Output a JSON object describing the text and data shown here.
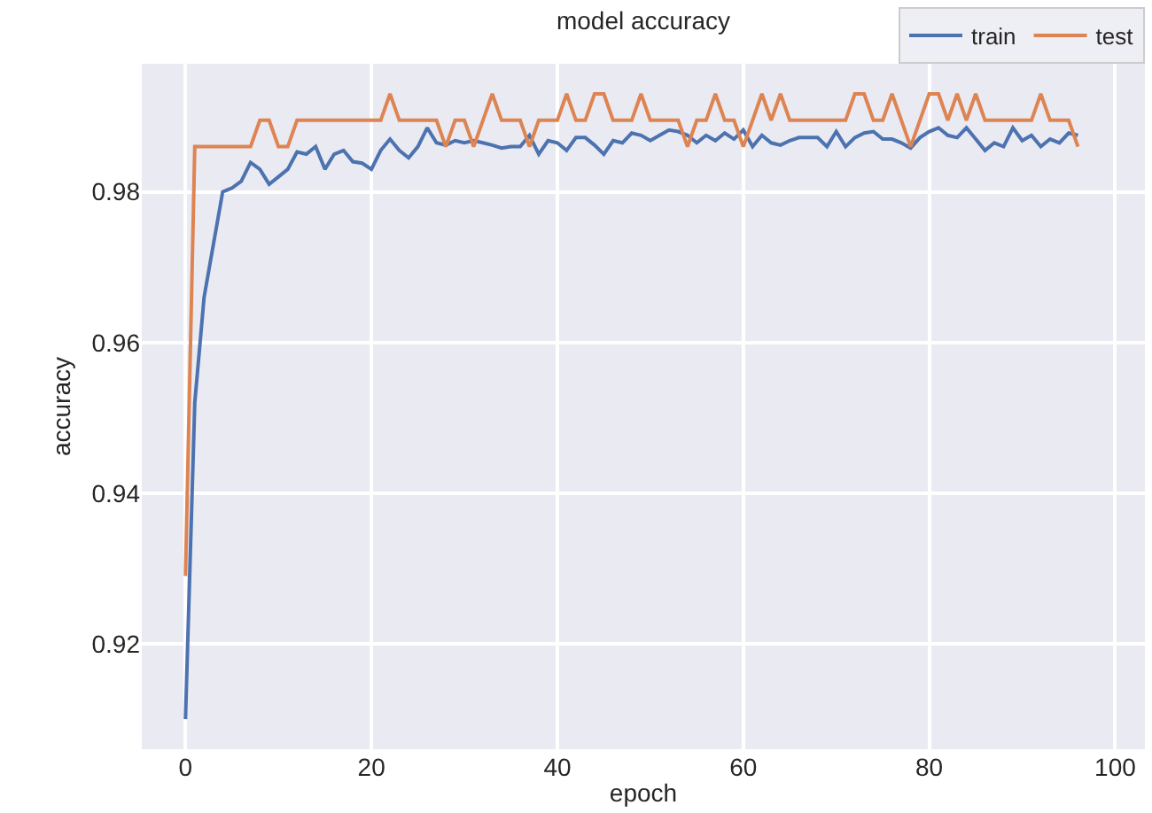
{
  "chart_data": {
    "type": "line",
    "title": "model accuracy",
    "xlabel": "epoch",
    "ylabel": "accuracy",
    "x": [
      0,
      1,
      2,
      3,
      4,
      5,
      6,
      7,
      8,
      9,
      10,
      11,
      12,
      13,
      14,
      15,
      16,
      17,
      18,
      19,
      20,
      21,
      22,
      23,
      24,
      25,
      26,
      27,
      28,
      29,
      30,
      31,
      32,
      33,
      34,
      35,
      36,
      37,
      38,
      39,
      40,
      41,
      42,
      43,
      44,
      45,
      46,
      47,
      48,
      49,
      50,
      51,
      52,
      53,
      54,
      55,
      56,
      57,
      58,
      59,
      60,
      61,
      62,
      63,
      64,
      65,
      66,
      67,
      68,
      69,
      70,
      71,
      72,
      73,
      74,
      75,
      76,
      77,
      78,
      79,
      80,
      81,
      82,
      83,
      84,
      85,
      86,
      87,
      88,
      89,
      90,
      91,
      92,
      93,
      94,
      95,
      96
    ],
    "series": [
      {
        "name": "train",
        "color": "#4c72b0",
        "values": [
          0.91,
          0.952,
          0.966,
          0.973,
          0.98,
          0.9805,
          0.9814,
          0.9839,
          0.983,
          0.981,
          0.982,
          0.983,
          0.9853,
          0.985,
          0.986,
          0.983,
          0.985,
          0.9855,
          0.984,
          0.9838,
          0.983,
          0.9855,
          0.987,
          0.9855,
          0.9845,
          0.986,
          0.9885,
          0.9865,
          0.9862,
          0.9868,
          0.9865,
          0.9868,
          0.9865,
          0.9862,
          0.9858,
          0.986,
          0.986,
          0.9875,
          0.985,
          0.9868,
          0.9865,
          0.9855,
          0.9872,
          0.9872,
          0.9862,
          0.985,
          0.9868,
          0.9865,
          0.9878,
          0.9875,
          0.9868,
          0.9875,
          0.9882,
          0.988,
          0.9875,
          0.9865,
          0.9875,
          0.9868,
          0.9878,
          0.987,
          0.9882,
          0.986,
          0.9875,
          0.9865,
          0.9862,
          0.9868,
          0.9872,
          0.9872,
          0.9872,
          0.986,
          0.988,
          0.986,
          0.9872,
          0.9878,
          0.988,
          0.987,
          0.987,
          0.9865,
          0.9858,
          0.9872,
          0.988,
          0.9885,
          0.9875,
          0.9872,
          0.9885,
          0.987,
          0.9855,
          0.9865,
          0.986,
          0.9885,
          0.9868,
          0.9875,
          0.986,
          0.987,
          0.9865,
          0.9878,
          0.9875
        ]
      },
      {
        "name": "test",
        "color": "#dd8452",
        "values": [
          0.929,
          0.986,
          0.986,
          0.986,
          0.986,
          0.986,
          0.986,
          0.986,
          0.9895,
          0.9895,
          0.986,
          0.986,
          0.9895,
          0.9895,
          0.9895,
          0.9895,
          0.9895,
          0.9895,
          0.9895,
          0.9895,
          0.9895,
          0.9895,
          0.993,
          0.9895,
          0.9895,
          0.9895,
          0.9895,
          0.9895,
          0.986,
          0.9895,
          0.9895,
          0.986,
          0.9895,
          0.993,
          0.9895,
          0.9895,
          0.9895,
          0.986,
          0.9895,
          0.9895,
          0.9895,
          0.993,
          0.9895,
          0.9895,
          0.993,
          0.993,
          0.9895,
          0.9895,
          0.9895,
          0.993,
          0.9895,
          0.9895,
          0.9895,
          0.9895,
          0.986,
          0.9895,
          0.9895,
          0.993,
          0.9895,
          0.9895,
          0.986,
          0.9895,
          0.993,
          0.9895,
          0.993,
          0.9895,
          0.9895,
          0.9895,
          0.9895,
          0.9895,
          0.9895,
          0.9895,
          0.993,
          0.993,
          0.9895,
          0.9895,
          0.993,
          0.9895,
          0.986,
          0.9895,
          0.993,
          0.993,
          0.9895,
          0.993,
          0.9895,
          0.993,
          0.9895,
          0.9895,
          0.9895,
          0.9895,
          0.9895,
          0.9895,
          0.993,
          0.9895,
          0.9895,
          0.9895,
          0.986
        ]
      }
    ],
    "xlim": [
      -4.7,
      103.2
    ],
    "xticks": [
      0,
      20,
      40,
      60,
      80,
      100
    ],
    "ylim": [
      0.906,
      0.997
    ],
    "yticks": [
      0.92,
      0.94,
      0.96,
      0.98
    ],
    "grid": true,
    "legend": "top right",
    "marker": "none",
    "line_style": "solid"
  }
}
